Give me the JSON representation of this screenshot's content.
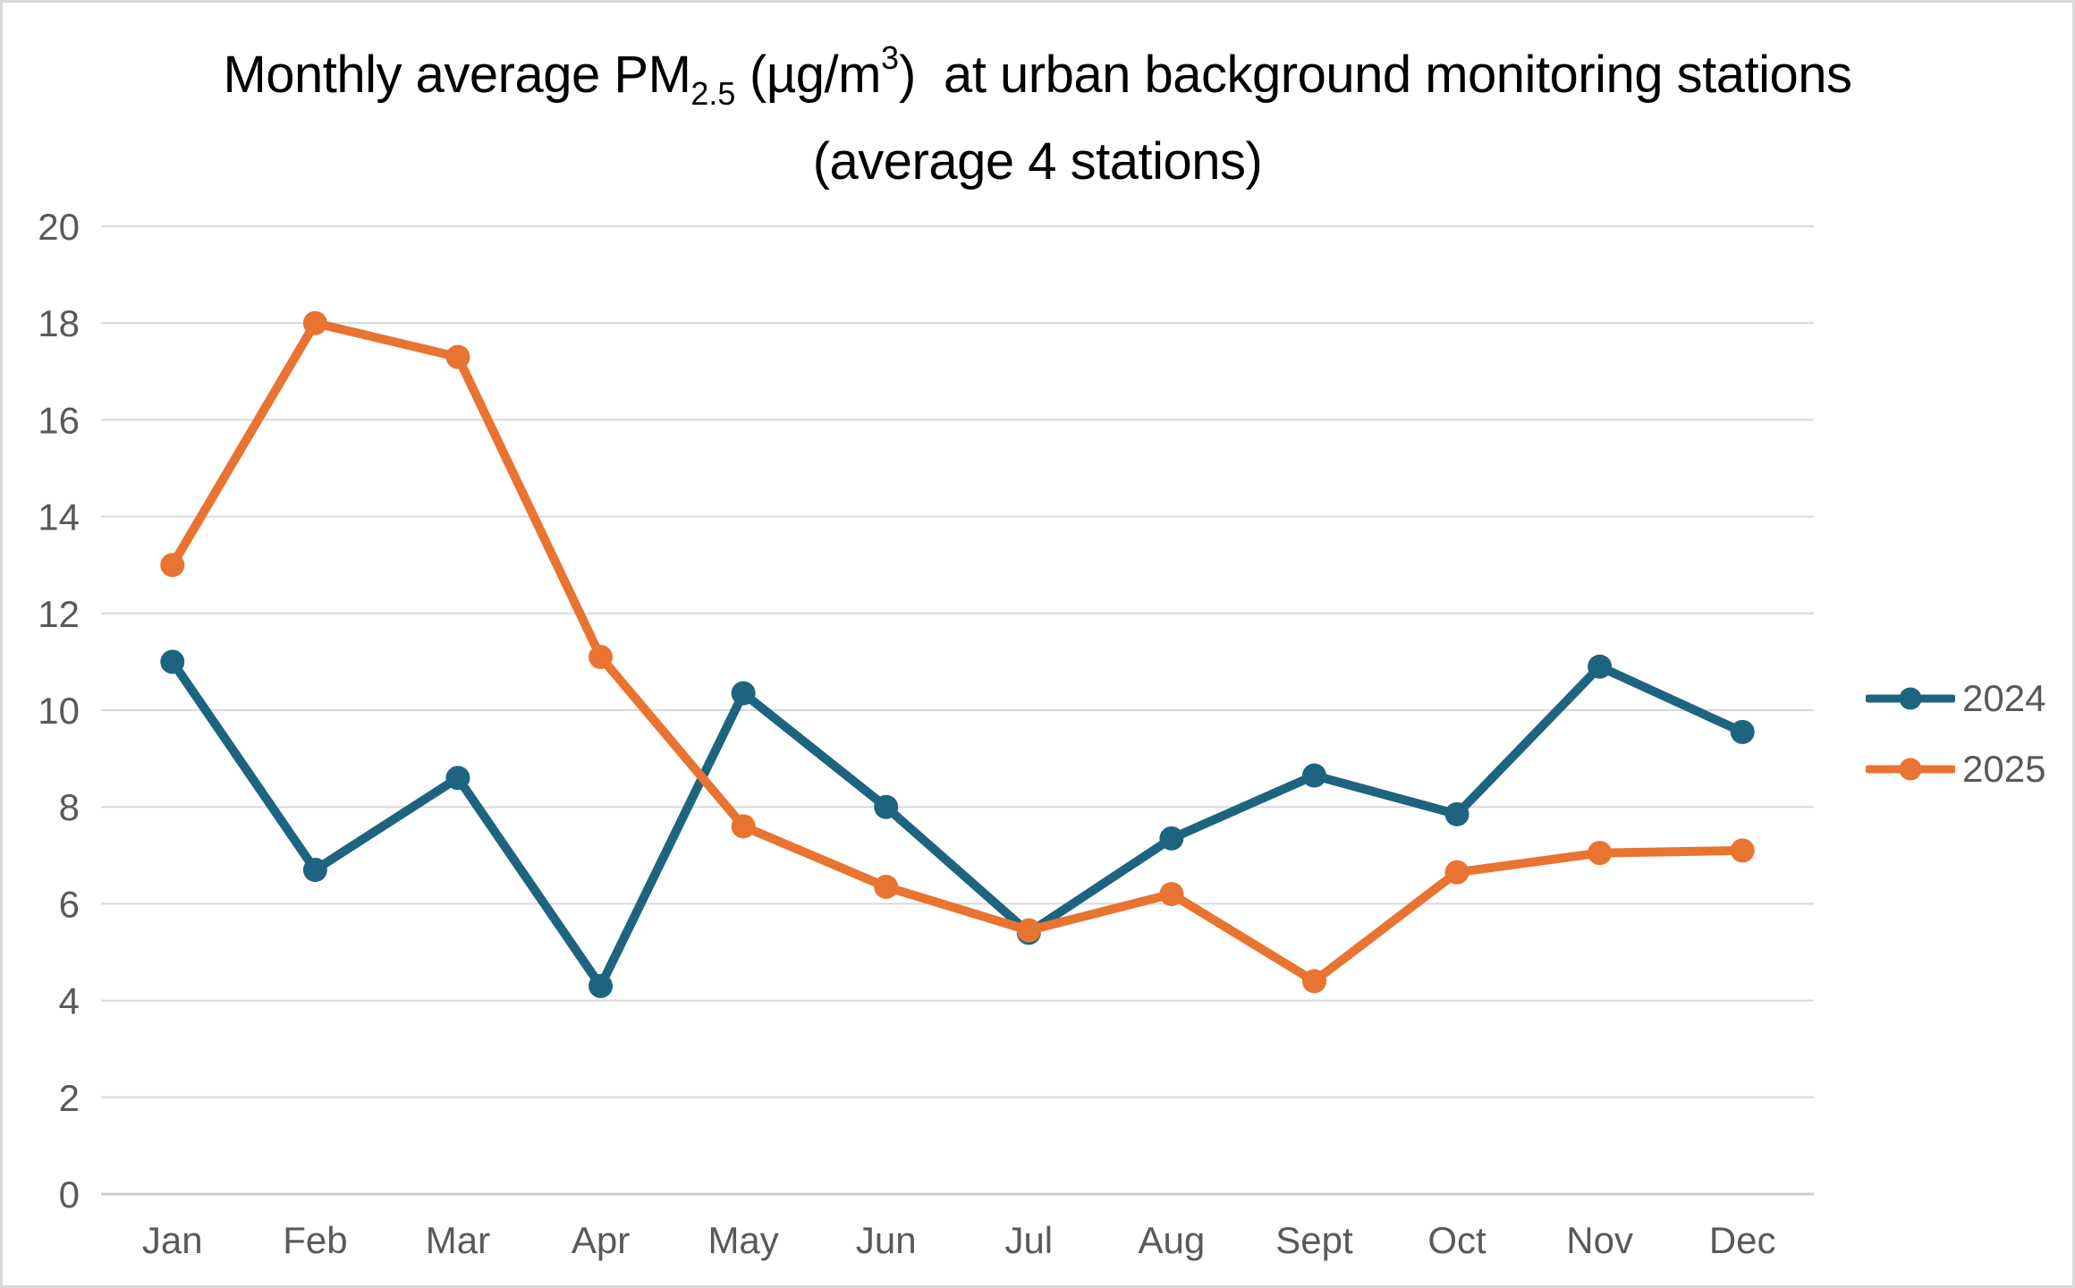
{
  "title": {
    "part1": "Monthly average PM",
    "sub": "2.5",
    "part2": " (µg/m",
    "sup": "3",
    "part3": ")  at urban background monitoring stations",
    "line2": "(average 4 stations)"
  },
  "chart_data": {
    "type": "line",
    "title": "Monthly average PM2.5 (µg/m3) at urban background monitoring stations (average 4 stations)",
    "categories": [
      "Jan",
      "Feb",
      "Mar",
      "Apr",
      "May",
      "Jun",
      "Jul",
      "Aug",
      "Sept",
      "Oct",
      "Nov",
      "Dec"
    ],
    "series": [
      {
        "name": "2024",
        "color": "#1E6480",
        "values": [
          11.0,
          6.7,
          8.6,
          4.3,
          10.35,
          8.0,
          5.4,
          7.35,
          8.65,
          7.85,
          10.9,
          9.55
        ]
      },
      {
        "name": "2025",
        "color": "#E97331",
        "values": [
          13.0,
          18.0,
          17.3,
          11.1,
          7.6,
          6.35,
          5.45,
          6.2,
          4.4,
          6.65,
          7.05,
          7.1
        ]
      }
    ],
    "xlabel": "",
    "ylabel": "",
    "ylim": [
      0,
      20
    ],
    "y_ticks": [
      0,
      2,
      4,
      6,
      8,
      10,
      12,
      14,
      16,
      18,
      20
    ],
    "grid": "horizontal",
    "legend_position": "right",
    "marker": "circle",
    "colors": {
      "grid": "#D9D9D9",
      "axis": "#CBCBCB",
      "tick_label": "#595959",
      "title": "#000000",
      "frame_border": "#D9D9D9"
    }
  }
}
